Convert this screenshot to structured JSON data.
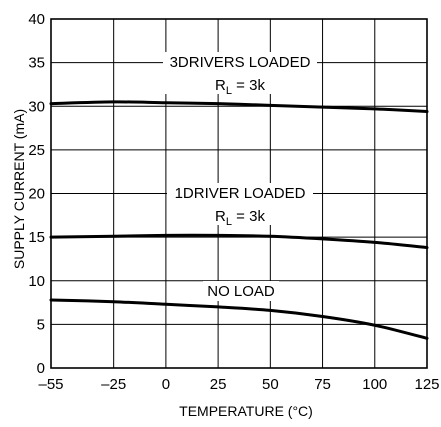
{
  "chart_data": {
    "type": "line",
    "xlabel": "TEMPERATURE (°C)",
    "ylabel": "SUPPLY CURRENT (mA)",
    "xlim": [
      -55,
      125
    ],
    "ylim": [
      0,
      40
    ],
    "x_ticks": [
      -55,
      -25,
      0,
      25,
      50,
      75,
      100,
      125
    ],
    "x_tick_labels": [
      "–55",
      "–25",
      "0",
      "25",
      "50",
      "75",
      "100",
      "125"
    ],
    "y_ticks": [
      0,
      5,
      10,
      15,
      20,
      25,
      30,
      35,
      40
    ],
    "y_tick_labels": [
      "0",
      "5",
      "10",
      "15",
      "20",
      "25",
      "30",
      "35",
      "40"
    ],
    "grid": true,
    "series": [
      {
        "x": [
          -55,
          -25,
          0,
          25,
          50,
          75,
          100,
          125
        ],
        "y": [
          30.3,
          30.5,
          30.4,
          30.3,
          30.1,
          29.9,
          29.7,
          29.4
        ]
      },
      {
        "x": [
          -55,
          -25,
          0,
          25,
          50,
          75,
          100,
          125
        ],
        "y": [
          15.0,
          15.1,
          15.2,
          15.2,
          15.1,
          14.8,
          14.4,
          13.8
        ]
      },
      {
        "x": [
          -55,
          -25,
          0,
          25,
          50,
          75,
          100,
          125
        ],
        "y": [
          7.8,
          7.6,
          7.3,
          7.0,
          6.6,
          5.9,
          4.9,
          3.4
        ]
      }
    ],
    "annotations": [
      {
        "id": "ann-3drivers",
        "main": "3DRIVERS LOADED",
        "sub_prefix": "R",
        "sub_subscript": "L",
        "sub_suffix": " = 3k"
      },
      {
        "id": "ann-1driver",
        "main": "1DRIVER LOADED",
        "sub_prefix": "R",
        "sub_subscript": "L",
        "sub_suffix": " = 3k"
      },
      {
        "id": "ann-noload",
        "main": "NO LOAD"
      }
    ]
  }
}
